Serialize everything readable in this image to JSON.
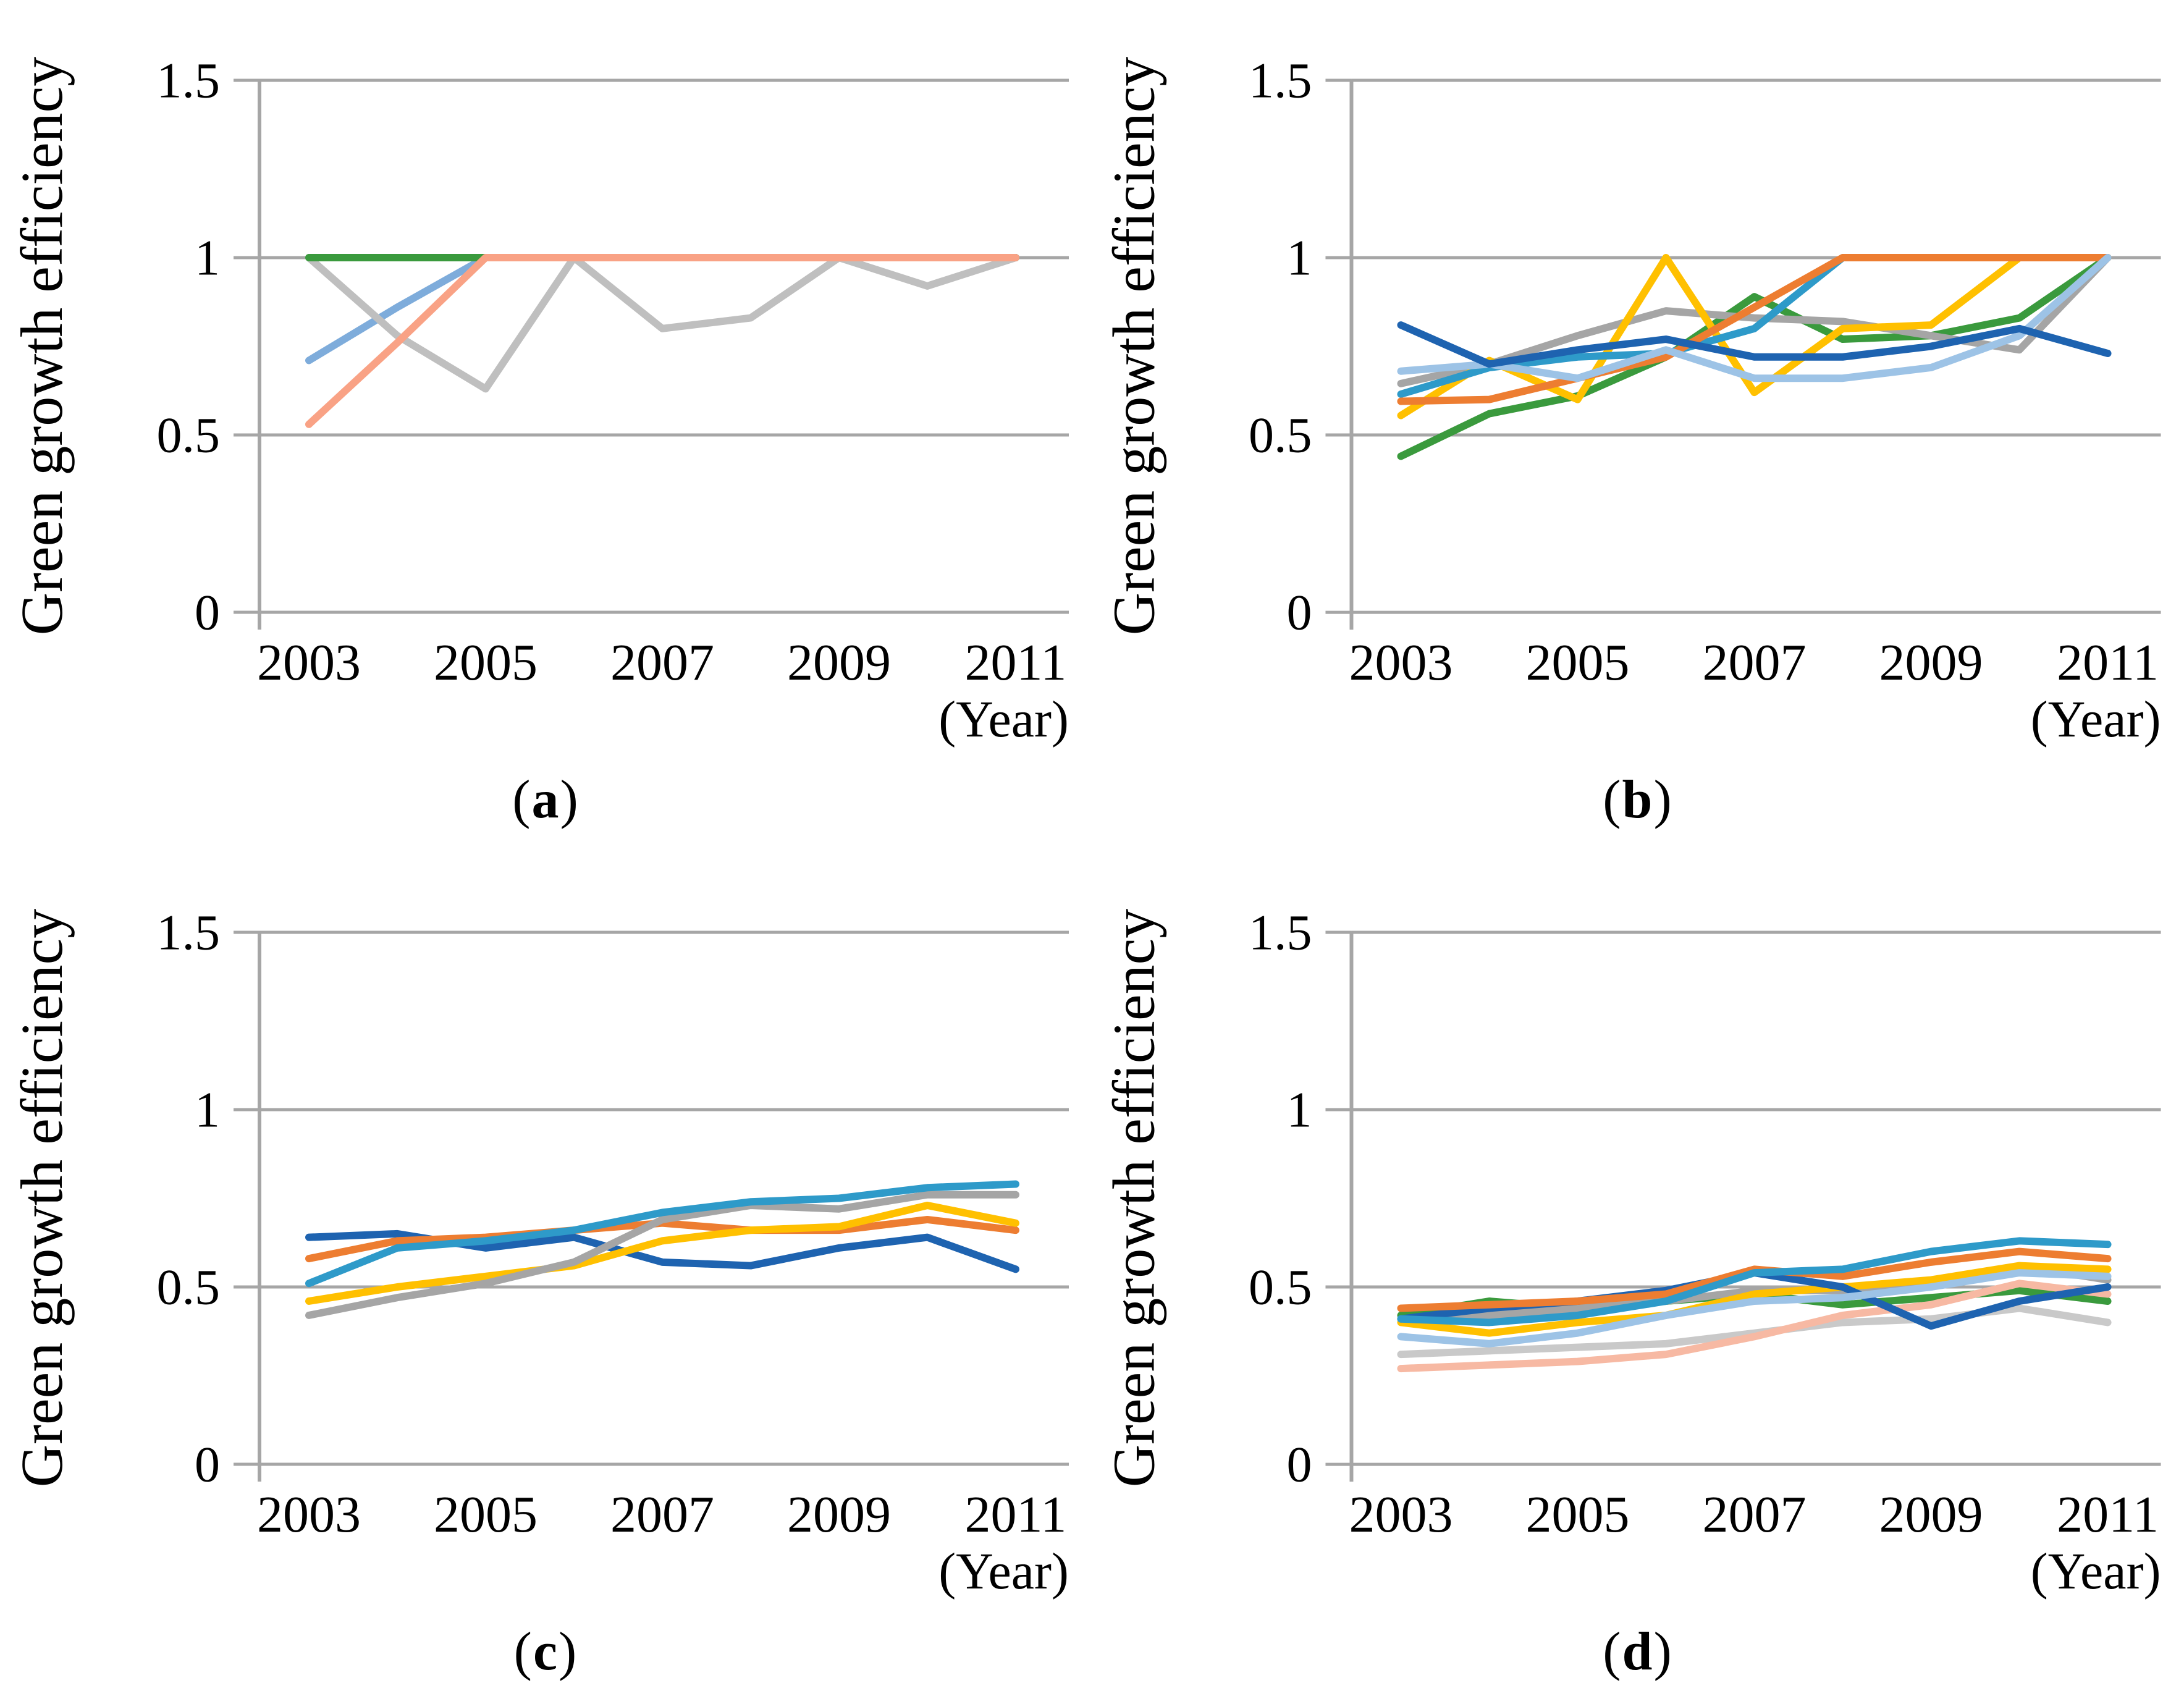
{
  "figure": {
    "ylabel": "Green growth efficiency",
    "xlabel": "(Year)",
    "years": [
      2003,
      2004,
      2005,
      2006,
      2007,
      2008,
      2009,
      2010,
      2011
    ],
    "ytick_labels": [
      "0",
      "0.5",
      "1",
      "1.5"
    ],
    "xtick_labels_shown": [
      "2003",
      "2005",
      "2007",
      "2009",
      "2011"
    ],
    "axis_color": "#A6A6A6",
    "text_color": "#000000"
  },
  "chart_data": [
    {
      "type": "line",
      "id": "a",
      "caption": "a",
      "ylabel": "Green growth efficiency",
      "xlabel": "(Year)",
      "x": [
        2003,
        2004,
        2005,
        2006,
        2007,
        2008,
        2009,
        2010,
        2011
      ],
      "ylim": [
        0,
        1.5
      ],
      "yticks": [
        0,
        0.5,
        1,
        1.5
      ],
      "xticks_shown": [
        2003,
        2005,
        2007,
        2009,
        2011
      ],
      "grid": true,
      "legend_position": "none",
      "series": [
        {
          "name": "blue",
          "color": "#7EACDB",
          "values": [
            0.71,
            0.86,
            1.0,
            1.0,
            1.0,
            1.0,
            1.0,
            1.0,
            1.0
          ]
        },
        {
          "name": "gray",
          "color": "#BFBFBF",
          "values": [
            1.0,
            0.78,
            0.63,
            1.0,
            0.8,
            0.83,
            1.0,
            0.92,
            1.0
          ]
        },
        {
          "name": "green",
          "color": "#3A9A3D",
          "values": [
            1.0,
            1.0,
            1.0,
            1.0,
            1.0,
            1.0,
            1.0,
            1.0,
            1.0
          ]
        },
        {
          "name": "coral",
          "color": "#F9A285",
          "values": [
            0.53,
            0.76,
            1.0,
            1.0,
            1.0,
            1.0,
            1.0,
            1.0,
            1.0
          ]
        }
      ]
    },
    {
      "type": "line",
      "id": "b",
      "caption": "b",
      "ylabel": "Green growth efficiency",
      "xlabel": "(Year)",
      "x": [
        2003,
        2004,
        2005,
        2006,
        2007,
        2008,
        2009,
        2010,
        2011
      ],
      "ylim": [
        0,
        1.5
      ],
      "yticks": [
        0,
        0.5,
        1,
        1.5
      ],
      "xticks_shown": [
        2003,
        2005,
        2007,
        2009,
        2011
      ],
      "grid": true,
      "legend_position": "none",
      "series": [
        {
          "name": "green",
          "color": "#3A9A3D",
          "values": [
            0.44,
            0.56,
            0.61,
            0.72,
            0.89,
            0.77,
            0.78,
            0.83,
            1.0
          ]
        },
        {
          "name": "gray",
          "color": "#A5A5A5",
          "values": [
            0.645,
            0.7,
            0.78,
            0.85,
            0.83,
            0.82,
            0.78,
            0.74,
            1.0
          ]
        },
        {
          "name": "gold",
          "color": "#FFC000",
          "values": [
            0.555,
            0.71,
            0.6,
            1.0,
            0.62,
            0.8,
            0.81,
            1.0,
            1.0
          ]
        },
        {
          "name": "teal",
          "color": "#2E9AC9",
          "values": [
            0.615,
            0.69,
            0.72,
            0.73,
            0.8,
            1.0,
            1.0,
            1.0,
            1.0
          ]
        },
        {
          "name": "orange",
          "color": "#ED7D31",
          "values": [
            0.595,
            0.6,
            0.66,
            0.72,
            0.86,
            1.0,
            1.0,
            1.0,
            1.0
          ]
        },
        {
          "name": "light-blue",
          "color": "#9DC3E6",
          "values": [
            0.68,
            0.7,
            0.66,
            0.74,
            0.66,
            0.66,
            0.69,
            0.78,
            1.0
          ]
        },
        {
          "name": "dark-blue",
          "color": "#1E63B0",
          "values": [
            0.81,
            0.7,
            0.74,
            0.77,
            0.72,
            0.72,
            0.75,
            0.8,
            0.73
          ]
        }
      ]
    },
    {
      "type": "line",
      "id": "c",
      "caption": "c",
      "ylabel": "Green growth efficiency",
      "xlabel": "(Year)",
      "x": [
        2003,
        2004,
        2005,
        2006,
        2007,
        2008,
        2009,
        2010,
        2011
      ],
      "ylim": [
        0,
        1.5
      ],
      "yticks": [
        0,
        0.5,
        1,
        1.5
      ],
      "xticks_shown": [
        2003,
        2005,
        2007,
        2009,
        2011
      ],
      "grid": true,
      "legend_position": "none",
      "series": [
        {
          "name": "dark-blue",
          "color": "#1E63B0",
          "values": [
            0.64,
            0.65,
            0.61,
            0.64,
            0.57,
            0.56,
            0.61,
            0.64,
            0.55
          ]
        },
        {
          "name": "orange",
          "color": "#ED7D31",
          "values": [
            0.58,
            0.63,
            0.64,
            0.66,
            0.68,
            0.66,
            0.66,
            0.69,
            0.66
          ]
        },
        {
          "name": "gold",
          "color": "#FFC000",
          "values": [
            0.46,
            0.5,
            0.53,
            0.56,
            0.63,
            0.66,
            0.67,
            0.73,
            0.68
          ]
        },
        {
          "name": "gray",
          "color": "#A5A5A5",
          "values": [
            0.42,
            0.47,
            0.51,
            0.57,
            0.69,
            0.73,
            0.72,
            0.76,
            0.76
          ]
        },
        {
          "name": "teal",
          "color": "#2E9AC9",
          "values": [
            0.51,
            0.61,
            0.63,
            0.66,
            0.71,
            0.74,
            0.75,
            0.78,
            0.79
          ]
        }
      ]
    },
    {
      "type": "line",
      "id": "d",
      "caption": "d",
      "ylabel": "Green growth efficiency",
      "xlabel": "(Year)",
      "x": [
        2003,
        2004,
        2005,
        2006,
        2007,
        2008,
        2009,
        2010,
        2011
      ],
      "ylim": [
        0,
        1.5
      ],
      "yticks": [
        0,
        0.5,
        1,
        1.5
      ],
      "xticks_shown": [
        2003,
        2005,
        2007,
        2009,
        2011
      ],
      "grid": true,
      "legend_position": "none",
      "series": [
        {
          "name": "green",
          "color": "#3A9A3D",
          "values": [
            0.42,
            0.46,
            0.44,
            0.46,
            0.48,
            0.45,
            0.47,
            0.49,
            0.46
          ]
        },
        {
          "name": "silver",
          "color": "#C9C9C9",
          "values": [
            0.31,
            0.32,
            0.33,
            0.34,
            0.37,
            0.4,
            0.41,
            0.44,
            0.4
          ]
        },
        {
          "name": "gray",
          "color": "#A5A5A5",
          "values": [
            0.41,
            0.42,
            0.44,
            0.46,
            0.49,
            0.49,
            0.5,
            0.56,
            0.52
          ]
        },
        {
          "name": "gold",
          "color": "#FFC000",
          "values": [
            0.4,
            0.37,
            0.4,
            0.42,
            0.48,
            0.5,
            0.52,
            0.56,
            0.55
          ]
        },
        {
          "name": "salmon",
          "color": "#F7B9A3",
          "values": [
            0.27,
            0.28,
            0.29,
            0.31,
            0.36,
            0.42,
            0.45,
            0.51,
            0.48
          ]
        },
        {
          "name": "dark-blue",
          "color": "#1E63B0",
          "values": [
            0.41,
            0.44,
            0.46,
            0.49,
            0.54,
            0.5,
            0.39,
            0.46,
            0.5
          ]
        },
        {
          "name": "light-blue",
          "color": "#9DC3E6",
          "values": [
            0.36,
            0.34,
            0.37,
            0.42,
            0.46,
            0.47,
            0.5,
            0.54,
            0.53
          ]
        },
        {
          "name": "orange",
          "color": "#ED7D31",
          "values": [
            0.44,
            0.45,
            0.46,
            0.48,
            0.55,
            0.53,
            0.57,
            0.6,
            0.58
          ]
        },
        {
          "name": "teal",
          "color": "#2E9AC9",
          "values": [
            0.41,
            0.4,
            0.42,
            0.46,
            0.54,
            0.55,
            0.6,
            0.63,
            0.62
          ]
        }
      ]
    }
  ]
}
